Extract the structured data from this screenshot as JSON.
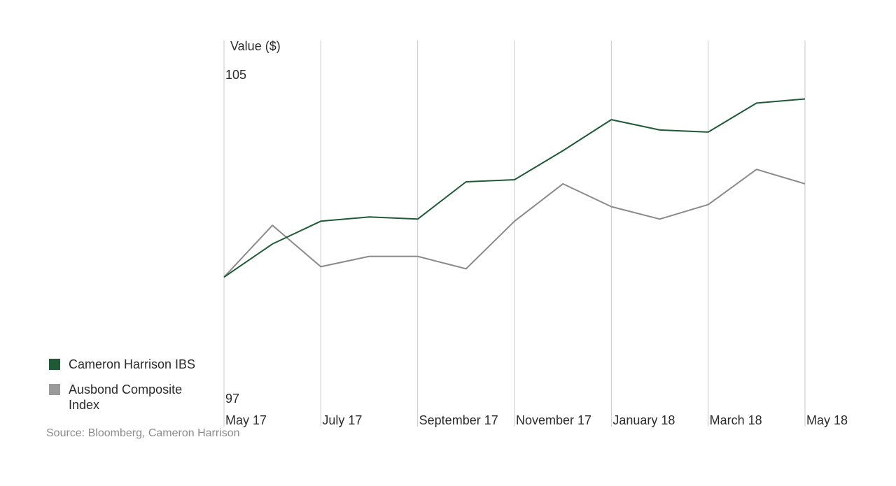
{
  "chart_data": {
    "type": "line",
    "ylabel": "Value ($)",
    "y_tick_labels": [
      "105",
      "97"
    ],
    "ylim": [
      97,
      105
    ],
    "grid": "vertical",
    "legend_position": "bottom-left",
    "x_labels": [
      "May 17",
      "July 17",
      "September 17",
      "November 17",
      "January 18",
      "March 18",
      "May 18"
    ],
    "x": [
      "May 17",
      "Jun 17",
      "Jul 17",
      "Aug 17",
      "Sep 17",
      "Oct 17",
      "Nov 17",
      "Dec 17",
      "Jan 18",
      "Feb 18",
      "Mar 18",
      "Apr 18",
      "May 18"
    ],
    "series": [
      {
        "name": "Cameron Harrison IBS",
        "color": "#1e5a36",
        "values": [
          100.0,
          100.8,
          101.35,
          101.45,
          101.4,
          102.3,
          102.35,
          103.05,
          103.8,
          103.55,
          103.5,
          104.2,
          104.3
        ]
      },
      {
        "name": "Ausbond Composite Index",
        "color": "#8a8a8a",
        "values": [
          100.0,
          101.25,
          100.25,
          100.5,
          100.5,
          100.2,
          101.35,
          102.25,
          101.7,
          101.4,
          101.75,
          102.6,
          102.25
        ]
      }
    ]
  },
  "source": "Source: Bloomberg, Cameron Harrison"
}
